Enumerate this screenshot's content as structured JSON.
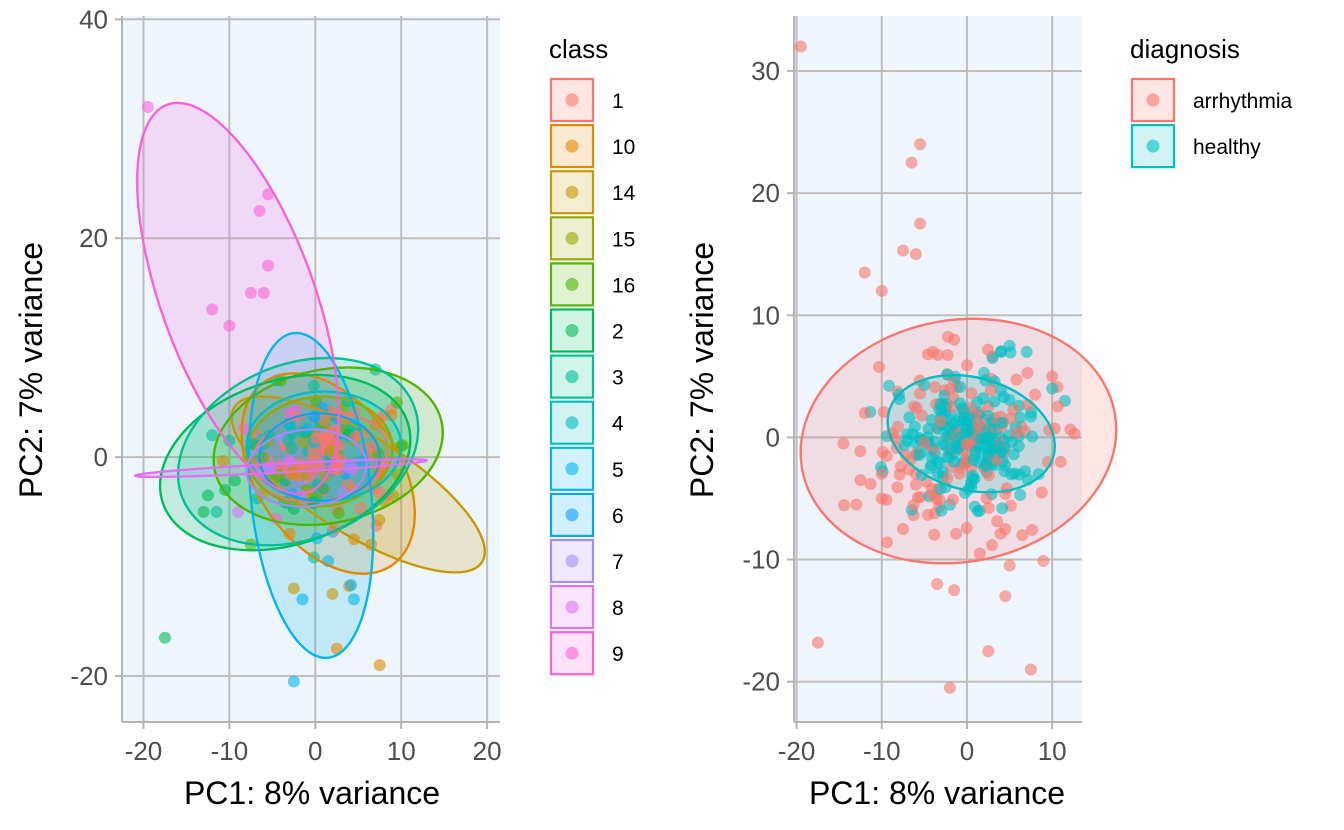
{
  "chart_data": [
    {
      "type": "scatter",
      "title": "",
      "xlabel": "PC1: 8% variance",
      "ylabel": "PC2: 7% variance",
      "xlim": [
        -22.5,
        21.5
      ],
      "ylim": [
        -24.2,
        40.3
      ],
      "xticks": [
        -20,
        -10,
        0,
        10,
        20
      ],
      "xtick_labels": [
        "-20",
        "-10",
        "0",
        "10",
        "20"
      ],
      "yticks": [
        -20,
        0,
        20,
        40
      ],
      "ytick_labels": [
        "-20",
        "0",
        "20",
        "40"
      ],
      "grid": true,
      "panel_background": "#eef5fd",
      "legend": {
        "title": "class",
        "position": "right"
      },
      "ellipses": true,
      "series": [
        {
          "name": "1",
          "color": "#f8766d",
          "center": [
            2.0,
            0.5
          ],
          "spread": [
            3.5,
            2.5
          ],
          "ellipse": {
            "cx": 0.5,
            "cy": 0.0,
            "rx": 8.0,
            "ry": 4.0,
            "angle": 10
          },
          "points": [
            [
              4.5,
              2.0
            ],
            [
              -3.0,
              -1.0
            ],
            [
              1.0,
              -3.0
            ],
            [
              3.5,
              3.5
            ]
          ]
        },
        {
          "name": "10",
          "color": "#e38900",
          "center": [
            1.5,
            -2.0
          ],
          "spread": [
            3.5,
            4.5
          ],
          "ellipse": {
            "cx": 1.5,
            "cy": -1.5,
            "rx": 13.0,
            "ry": 6.5,
            "angle": -55
          },
          "points": [
            [
              7.5,
              -19.0
            ],
            [
              2.5,
              -17.5
            ],
            [
              4.5,
              -7.5
            ],
            [
              6.5,
              -8.0
            ],
            [
              -3.0,
              -7.0
            ]
          ]
        },
        {
          "name": "14",
          "color": "#c49a00",
          "center": [
            3.0,
            -1.0
          ],
          "spread": [
            4.5,
            3.5
          ],
          "ellipse": {
            "cx": 5.0,
            "cy": -2.5,
            "rx": 17.0,
            "ry": 4.5,
            "angle": -32
          },
          "points": [
            [
              -2.5,
              -12.0
            ],
            [
              2.0,
              -12.5
            ],
            [
              8.0,
              -4.0
            ]
          ]
        },
        {
          "name": "15",
          "color": "#99a800",
          "center": [
            0.5,
            0.5
          ],
          "spread": [
            3.5,
            2.5
          ],
          "ellipse": {
            "cx": 0.5,
            "cy": 0.5,
            "rx": 8.5,
            "ry": 5.0,
            "angle": 5
          },
          "points": [
            [
              -5.5,
              1.5
            ],
            [
              7.0,
              3.0
            ]
          ]
        },
        {
          "name": "16",
          "color": "#53b400",
          "center": [
            1.0,
            0.5
          ],
          "spread": [
            4.5,
            3.0
          ],
          "ellipse": {
            "cx": 1.5,
            "cy": 1.0,
            "rx": 13.5,
            "ry": 7.0,
            "angle": 12
          },
          "points": [
            [
              -7.5,
              -8.0
            ],
            [
              10.0,
              1.0
            ],
            [
              9.5,
              5.0
            ],
            [
              -4.0,
              7.0
            ]
          ]
        },
        {
          "name": "2",
          "color": "#00bc56",
          "center": [
            -3.0,
            -0.5
          ],
          "spread": [
            4.0,
            3.0
          ],
          "ellipse": {
            "cx": -3.5,
            "cy": -0.5,
            "rx": 15.0,
            "ry": 7.5,
            "angle": 18
          },
          "points": [
            [
              -17.5,
              -16.5
            ],
            [
              -12.5,
              -3.5
            ],
            [
              -13.0,
              -5.0
            ],
            [
              -10.5,
              -3.0
            ]
          ]
        },
        {
          "name": "3",
          "color": "#00c094",
          "center": [
            -2.0,
            0.0
          ],
          "spread": [
            4.0,
            3.0
          ],
          "ellipse": {
            "cx": -2.0,
            "cy": 0.5,
            "rx": 14.5,
            "ry": 8.0,
            "angle": 22
          },
          "points": [
            [
              -12.0,
              2.0
            ],
            [
              -11.5,
              -5.0
            ],
            [
              -10.0,
              1.5
            ],
            [
              -4.5,
              7.0
            ],
            [
              7.0,
              8.0
            ]
          ]
        },
        {
          "name": "4",
          "color": "#00bfc4",
          "center": [
            1.0,
            0.5
          ],
          "spread": [
            3.5,
            2.5
          ],
          "ellipse": {
            "cx": 1.0,
            "cy": 1.0,
            "rx": 9.0,
            "ry": 5.0,
            "angle": 0
          },
          "points": [
            [
              -3.0,
              3.0
            ],
            [
              3.0,
              1.5
            ]
          ]
        },
        {
          "name": "5",
          "color": "#00b6eb",
          "center": [
            0.0,
            -2.0
          ],
          "spread": [
            3.0,
            5.0
          ],
          "ellipse": {
            "cx": -0.5,
            "cy": -3.5,
            "rx": 19.0,
            "ry": 5.5,
            "angle": -84
          },
          "points": [
            [
              -2.5,
              -20.5
            ],
            [
              -1.5,
              -13.0
            ],
            [
              1.5,
              -9.5
            ],
            [
              4.5,
              -13.0
            ]
          ]
        },
        {
          "name": "6",
          "color": "#06a4ff",
          "center": [
            0.5,
            0.0
          ],
          "spread": [
            3.0,
            2.0
          ],
          "ellipse": {
            "cx": 0.5,
            "cy": 0.0,
            "rx": 7.0,
            "ry": 4.0,
            "angle": 0
          },
          "points": [
            [
              2.5,
              1.5
            ],
            [
              -1.0,
              -1.5
            ]
          ]
        },
        {
          "name": "7",
          "color": "#a58aff",
          "center": [
            -1.0,
            -1.0
          ],
          "spread": [
            3.0,
            2.0
          ],
          "ellipse": {
            "cx": -1.0,
            "cy": -1.0,
            "rx": 7.0,
            "ry": 3.5,
            "angle": 5
          },
          "points": [
            [
              -6.0,
              -0.5
            ],
            [
              1.0,
              -0.5
            ],
            [
              -1.5,
              -2.0
            ]
          ]
        },
        {
          "name": "8",
          "color": "#df70f8",
          "center": [
            -3.0,
            -1.0
          ],
          "spread": [
            4.0,
            0.8
          ],
          "ellipse": {
            "cx": -4.0,
            "cy": -1.0,
            "rx": 17.0,
            "ry": 0.4,
            "angle": 3
          },
          "points": [
            [
              -5.0,
              -1.0
            ],
            [
              -3.0,
              -0.5
            ],
            [
              -7.0,
              -1.0
            ],
            [
              -9.0,
              -5.0
            ]
          ]
        },
        {
          "name": "9",
          "color": "#fb61d7",
          "center": [
            -5.0,
            2.0
          ],
          "spread": [
            3.0,
            3.0
          ],
          "ellipse": {
            "cx": -9.0,
            "cy": 14.5,
            "rx": 24.0,
            "ry": 7.0,
            "angle": -70
          },
          "points": [
            [
              -19.5,
              32.0
            ],
            [
              -5.5,
              24.0
            ],
            [
              -6.5,
              22.5
            ],
            [
              -5.5,
              17.5
            ],
            [
              -7.5,
              15.0
            ],
            [
              -6.0,
              15.0
            ],
            [
              -12.0,
              13.5
            ],
            [
              -10.0,
              12.0
            ],
            [
              -3.0,
              4.0
            ]
          ]
        }
      ]
    },
    {
      "type": "scatter",
      "title": "",
      "xlabel": "PC1: 8% variance",
      "ylabel": "PC2: 7% variance",
      "xlim": [
        -20.3,
        13.5
      ],
      "ylim": [
        -23.3,
        34.5
      ],
      "xticks": [
        -20,
        -10,
        0,
        10
      ],
      "xtick_labels": [
        "-20",
        "-10",
        "0",
        "10"
      ],
      "yticks": [
        -20,
        -10,
        0,
        10,
        20,
        30
      ],
      "ytick_labels": [
        "-20",
        "-10",
        "0",
        "10",
        "20",
        "30"
      ],
      "grid": true,
      "panel_background": "#eef5fd",
      "legend": {
        "title": "diagnosis",
        "position": "right"
      },
      "ellipses": true,
      "series": [
        {
          "name": "arrhythmia",
          "color": "#f8766d",
          "center": [
            -1.5,
            -0.5
          ],
          "spread": [
            5.5,
            4.0
          ],
          "ellipse": {
            "cx": -1.0,
            "cy": -0.3,
            "rx": 14.2,
            "ry": 13.0,
            "angle": -80
          },
          "points": [
            [
              -19.5,
              32.0
            ],
            [
              -17.5,
              -16.8
            ],
            [
              -6.5,
              22.5
            ],
            [
              -5.5,
              24.0
            ],
            [
              -5.5,
              17.5
            ],
            [
              -7.5,
              15.3
            ],
            [
              -6.0,
              15.0
            ],
            [
              -12.0,
              13.5
            ],
            [
              -10.0,
              12.0
            ],
            [
              -2.0,
              -20.5
            ],
            [
              2.5,
              -17.5
            ],
            [
              7.5,
              -19.0
            ],
            [
              -3.5,
              -12.0
            ],
            [
              -1.5,
              -12.5
            ],
            [
              4.5,
              -13.0
            ],
            [
              1.5,
              -9.5
            ],
            [
              5.0,
              -10.5
            ],
            [
              -13.0,
              -5.5
            ],
            [
              -10.0,
              -5.0
            ],
            [
              10.0,
              5.0
            ],
            [
              11.0,
              -2.0
            ],
            [
              6.5,
              -8.0
            ],
            [
              -7.5,
              -7.5
            ],
            [
              -14.5,
              -0.5
            ],
            [
              -12.0,
              2.0
            ],
            [
              -4.0,
              7.0
            ],
            [
              -1.5,
              8.0
            ],
            [
              4.5,
              -7.5
            ],
            [
              -10.0,
              -3.0
            ],
            [
              8.0,
              3.5
            ],
            [
              9.5,
              -2.0
            ],
            [
              -12.5,
              -3.5
            ]
          ]
        },
        {
          "name": "healthy",
          "color": "#00bfc4",
          "center": [
            0.0,
            0.0
          ],
          "spread": [
            4.0,
            2.4
          ],
          "ellipse": {
            "cx": 0.5,
            "cy": 0.3,
            "rx": 10.0,
            "ry": 4.6,
            "angle": -15
          },
          "points": [
            [
              5.0,
              7.5
            ],
            [
              4.0,
              7.0
            ],
            [
              3.0,
              6.5
            ],
            [
              7.0,
              7.0
            ],
            [
              -3.0,
              -6.0
            ],
            [
              -2.0,
              -5.5
            ],
            [
              1.5,
              -6.0
            ],
            [
              -8.0,
              3.5
            ],
            [
              10.0,
              4.0
            ],
            [
              11.5,
              3.0
            ]
          ]
        }
      ]
    }
  ]
}
